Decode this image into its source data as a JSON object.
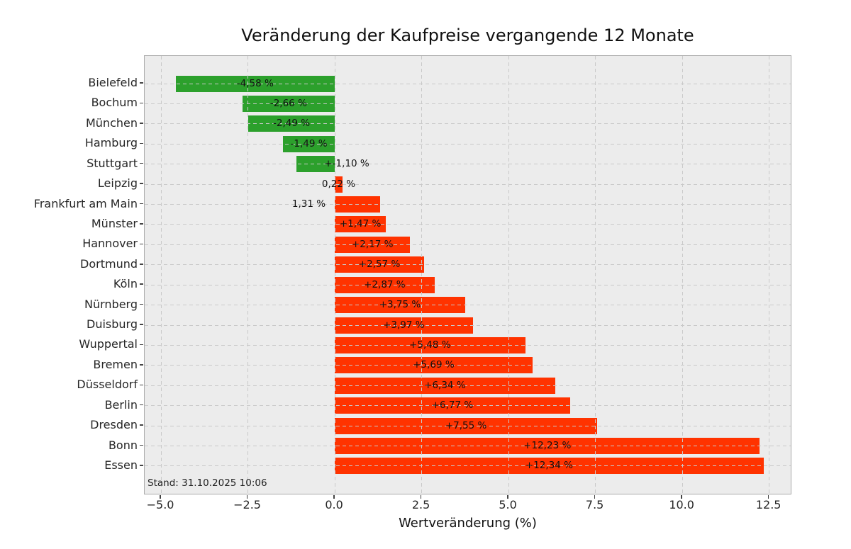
{
  "title": "Veränderung der Kaufpreise vergangende 12 Monate",
  "status_note": "Stand: 31.10.2025 10:06",
  "chart_data": {
    "type": "bar",
    "orientation": "horizontal",
    "title": "Veränderung der Kaufpreise vergangende 12 Monate",
    "xlabel": "Wertveränderung (%)",
    "ylabel": "",
    "xlim": [
      -5.47,
      13.16
    ],
    "x_ticks": [
      -5.0,
      -2.5,
      0.0,
      2.5,
      5.0,
      7.5,
      10.0,
      12.5
    ],
    "x_tick_labels": [
      "−5.0",
      "−2.5",
      "0.0",
      "2.5",
      "5.0",
      "7.5",
      "10.0",
      "12.5"
    ],
    "grid": {
      "visible": true,
      "style": "dashed",
      "drawn_over_bars": true
    },
    "legend": null,
    "colors": {
      "positive_bar": "#ff3300",
      "negative_bar": "#2ca02c",
      "plot_background": "#ececec",
      "figure_background": "#ffffff",
      "gridline": "#c9c9c9"
    },
    "bars": [
      {
        "city": "Bielefeld",
        "value": -4.58,
        "label": "-4,58 %",
        "label_pos": "center"
      },
      {
        "city": "Bochum",
        "value": -2.66,
        "label": "-2,66 %",
        "label_pos": "center"
      },
      {
        "city": "München",
        "value": -2.49,
        "label": "-2,49 %",
        "label_pos": "center"
      },
      {
        "city": "Hamburg",
        "value": -1.49,
        "label": "-1,49 %",
        "label_pos": "center"
      },
      {
        "city": "Stuttgart",
        "value": -1.1,
        "label": "+-1,10 %",
        "label_pos": "axis-right"
      },
      {
        "city": "Leipzig",
        "value": 0.22,
        "label": "0,22 %",
        "label_pos": "center"
      },
      {
        "city": "Frankfurt am Main",
        "value": 1.31,
        "label": "1,31 %",
        "label_pos": "outside-left"
      },
      {
        "city": "Münster",
        "value": 1.47,
        "label": "+1,47 %",
        "label_pos": "center"
      },
      {
        "city": "Hannover",
        "value": 2.17,
        "label": "+2,17 %",
        "label_pos": "center"
      },
      {
        "city": "Dortmund",
        "value": 2.57,
        "label": "+2,57 %",
        "label_pos": "center"
      },
      {
        "city": "Köln",
        "value": 2.87,
        "label": "+2,87 %",
        "label_pos": "center"
      },
      {
        "city": "Nürnberg",
        "value": 3.75,
        "label": "+3,75 %",
        "label_pos": "center"
      },
      {
        "city": "Duisburg",
        "value": 3.97,
        "label": "+3,97 %",
        "label_pos": "center"
      },
      {
        "city": "Wuppertal",
        "value": 5.48,
        "label": "+5,48 %",
        "label_pos": "center"
      },
      {
        "city": "Bremen",
        "value": 5.69,
        "label": "+5,69 %",
        "label_pos": "center"
      },
      {
        "city": "Düsseldorf",
        "value": 6.34,
        "label": "+6,34 %",
        "label_pos": "center"
      },
      {
        "city": "Berlin",
        "value": 6.77,
        "label": "+6,77 %",
        "label_pos": "center"
      },
      {
        "city": "Dresden",
        "value": 7.55,
        "label": "+7,55 %",
        "label_pos": "center"
      },
      {
        "city": "Bonn",
        "value": 12.23,
        "label": "+12,23 %",
        "label_pos": "center"
      },
      {
        "city": "Essen",
        "value": 12.34,
        "label": "+12,34 %",
        "label_pos": "center"
      }
    ]
  }
}
